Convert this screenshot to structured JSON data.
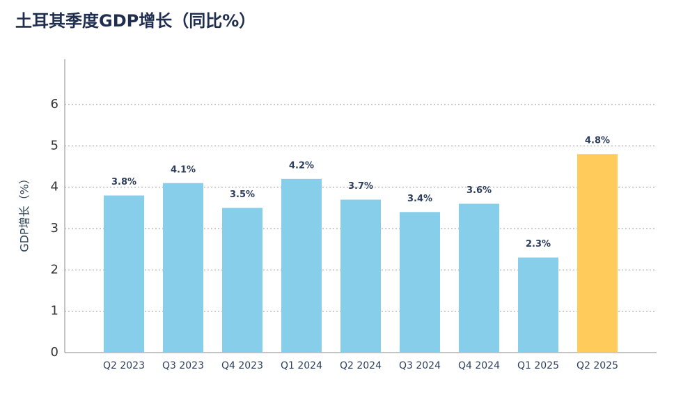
{
  "chart_data": {
    "type": "bar",
    "title": "土耳其季度GDP增长（同比%）",
    "y_label": "GDP增长（%）",
    "categories": [
      "Q2 2023",
      "Q3 2023",
      "Q4 2023",
      "Q1 2024",
      "Q2 2024",
      "Q3 2024",
      "Q4 2024",
      "Q1 2025",
      "Q2 2025"
    ],
    "values": [
      3.8,
      4.1,
      3.5,
      4.2,
      3.7,
      3.4,
      3.6,
      2.3,
      4.8
    ],
    "value_labels": [
      "3.8%",
      "4.1%",
      "3.5%",
      "4.2%",
      "3.7%",
      "3.4%",
      "3.6%",
      "2.3%",
      "4.8%"
    ],
    "colors": [
      "#87ceeb",
      "#87ceeb",
      "#87ceeb",
      "#87ceeb",
      "#87ceeb",
      "#87ceeb",
      "#87ceeb",
      "#87ceeb",
      "#ffcc5c"
    ],
    "ylim": [
      0,
      7
    ],
    "yticks": [
      0,
      1,
      2,
      3,
      4,
      5,
      6
    ],
    "grid": true
  }
}
